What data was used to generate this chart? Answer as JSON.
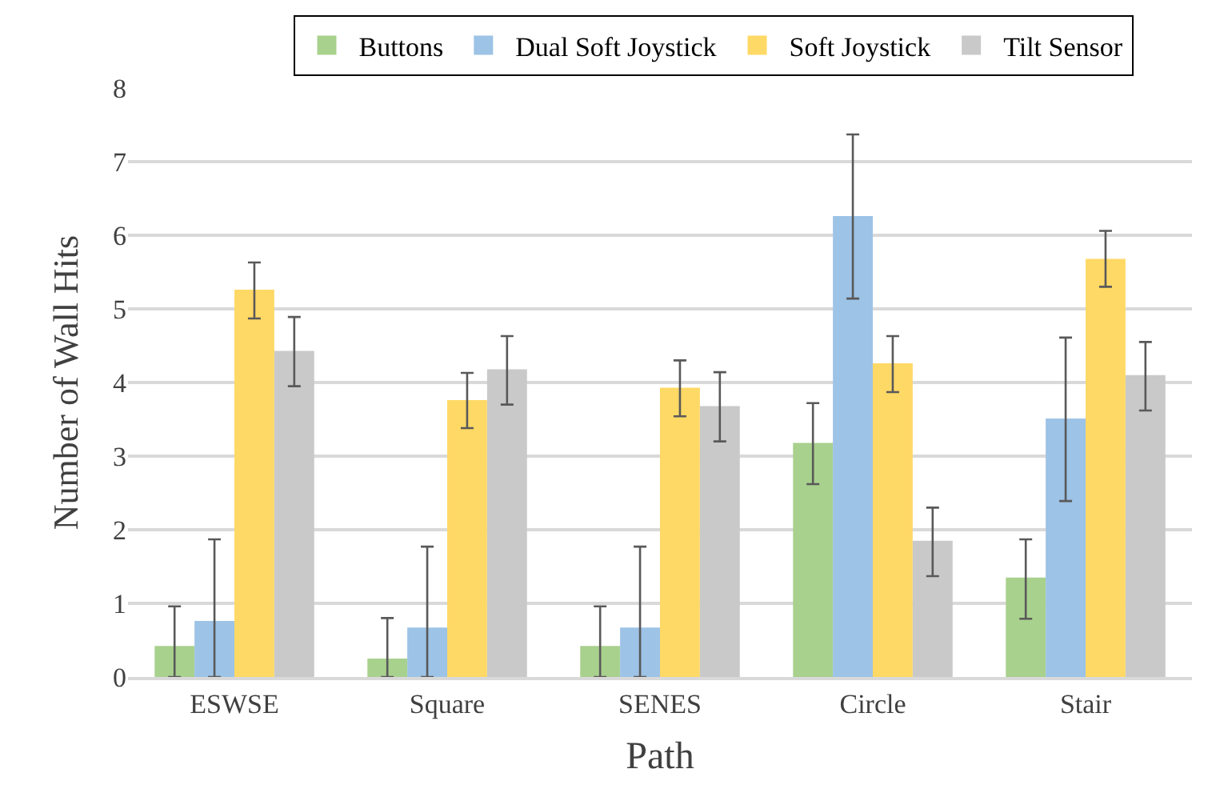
{
  "chart_data": {
    "type": "bar",
    "xlabel": "Path",
    "ylabel": "Number of Wall Hits",
    "categories": [
      "ESWSE",
      "Square",
      "SENES",
      "Circle",
      "Stair"
    ],
    "series": [
      {
        "name": "Buttons",
        "color": "#a9d18e",
        "values": [
          0.42,
          0.25,
          0.42,
          3.18,
          1.35
        ],
        "errors": [
          [
            0,
            0.96
          ],
          [
            0,
            0.8
          ],
          [
            0,
            0.96
          ],
          [
            2.62,
            3.72
          ],
          [
            0.79,
            1.87
          ]
        ]
      },
      {
        "name": "Dual Soft Joystick",
        "color": "#9dc3e6",
        "values": [
          0.76,
          0.67,
          0.67,
          6.26,
          3.51
        ],
        "errors": [
          [
            0,
            1.87
          ],
          [
            0,
            1.77
          ],
          [
            0,
            1.77
          ],
          [
            5.14,
            7.37
          ],
          [
            2.39,
            4.61
          ]
        ]
      },
      {
        "name": "Soft Joystick",
        "color": "#ffd966",
        "values": [
          5.26,
          3.76,
          3.93,
          4.26,
          5.68
        ],
        "errors": [
          [
            4.87,
            5.63
          ],
          [
            3.38,
            4.13
          ],
          [
            3.54,
            4.3
          ],
          [
            3.87,
            4.63
          ],
          [
            5.3,
            6.06
          ]
        ]
      },
      {
        "name": "Tilt Sensor",
        "color": "#c9c9c9",
        "values": [
          4.43,
          4.18,
          3.68,
          1.85,
          4.1
        ],
        "errors": [
          [
            3.95,
            4.89
          ],
          [
            3.7,
            4.63
          ],
          [
            3.2,
            4.14
          ],
          [
            1.37,
            2.3
          ],
          [
            3.62,
            4.55
          ]
        ]
      }
    ],
    "ylim": [
      0,
      8
    ],
    "yticks": [
      0,
      1,
      2,
      3,
      4,
      5,
      6,
      7,
      8
    ],
    "grid": "y",
    "legend": "top"
  }
}
